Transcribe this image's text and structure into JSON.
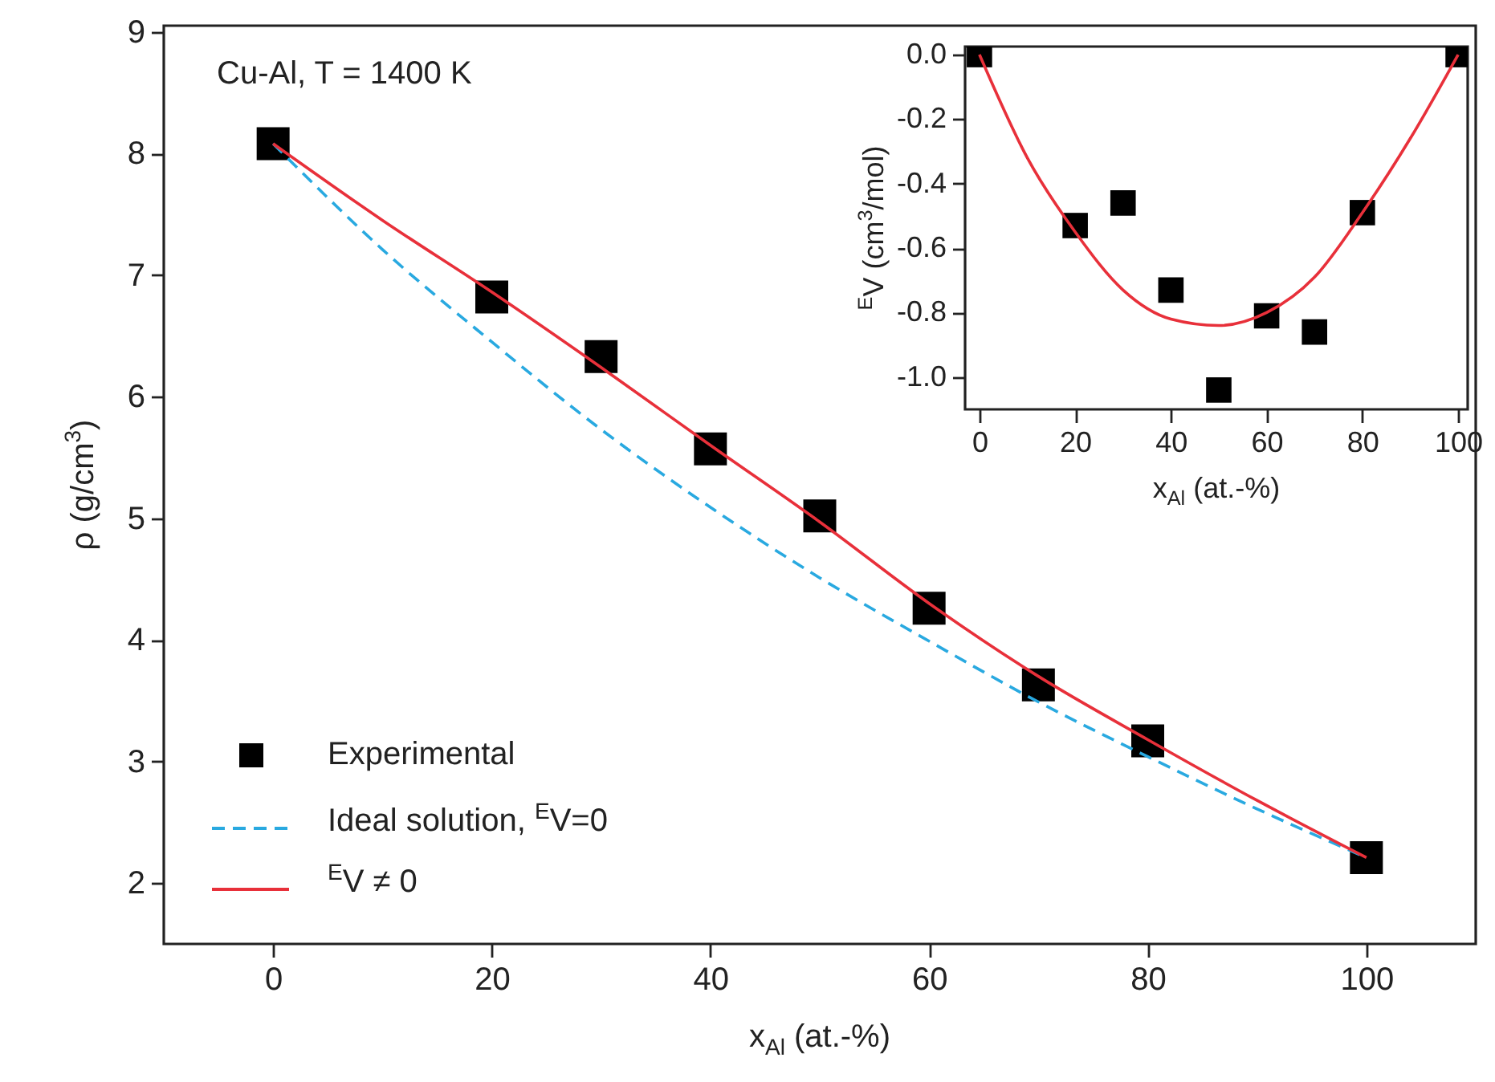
{
  "chart_data": [
    {
      "type": "scatter",
      "annotations": [
        "Cu-Al, T = 1400 K"
      ],
      "xlabel": "x$_{Al}$ (at.-%)",
      "ylabel": "ρ (g/cm$^{3}$)",
      "xlim": [
        -10,
        110
      ],
      "xticks": [
        0,
        20,
        40,
        60,
        80,
        100
      ],
      "ylim": [
        1.5,
        9.05
      ],
      "yticks": [
        2,
        3,
        4,
        5,
        6,
        7,
        8,
        9
      ],
      "legend": "bottom left",
      "series": [
        {
          "name": "Experimental",
          "marker": "square",
          "color": "#000000",
          "x": [
            0,
            20,
            30,
            40,
            50,
            60,
            70,
            80,
            100
          ],
          "values": [
            8.08,
            6.82,
            6.33,
            5.57,
            5.02,
            4.26,
            3.63,
            3.17,
            2.21
          ]
        },
        {
          "name": "Ideal solution, $^{E}$V=0",
          "type": "line",
          "line_style": "dashed",
          "color": "#29a9e0",
          "x": [
            0,
            10,
            20,
            30,
            40,
            50,
            60,
            70,
            80,
            90,
            100
          ],
          "values": [
            8.08,
            7.21,
            6.45,
            5.73,
            5.09,
            4.51,
            3.99,
            3.49,
            3.04,
            2.61,
            2.21
          ]
        },
        {
          "name": "$^{E}$V ≠ 0",
          "type": "line",
          "line_style": "solid",
          "color": "#e8303a",
          "x": [
            0,
            10,
            20,
            30,
            40,
            50,
            60,
            70,
            80,
            90,
            100
          ],
          "values": [
            8.08,
            7.45,
            6.86,
            6.24,
            5.6,
            4.97,
            4.3,
            3.7,
            3.18,
            2.68,
            2.21
          ]
        }
      ]
    },
    {
      "type": "scatter",
      "xlabel": "x$_{Al}$ (at.-%)",
      "ylabel": "$^{E}$V (cm$^{3}$/mol)",
      "xlim": [
        -3,
        102
      ],
      "xticks": [
        0,
        20,
        40,
        60,
        80,
        100
      ],
      "ylim": [
        -1.1,
        0.025
      ],
      "yticks": [
        {
          "value": 0,
          "label": "0.0"
        },
        {
          "value": -0.2,
          "label": "-0.2"
        },
        {
          "value": -0.4,
          "label": "-0.4"
        },
        {
          "value": -0.6,
          "label": "-0.6"
        },
        {
          "value": -0.8,
          "label": "-0.8"
        },
        {
          "value": -1,
          "label": "-1.0"
        }
      ],
      "series": [
        {
          "marker": "square",
          "color": "#000000",
          "x": [
            0,
            20,
            30,
            40,
            50,
            60,
            70,
            80,
            100
          ],
          "values": [
            0,
            -0.53,
            -0.46,
            -0.73,
            -1.04,
            -0.81,
            -0.86,
            -0.49,
            0
          ]
        },
        {
          "type": "line",
          "line_style": "solid",
          "color": "#e8303a",
          "x": [
            0,
            10,
            20,
            30,
            40,
            50,
            60,
            70,
            80,
            90,
            100
          ],
          "values": [
            0,
            -0.32,
            -0.55,
            -0.73,
            -0.82,
            -0.84,
            -0.8,
            -0.69,
            -0.49,
            -0.26,
            0
          ]
        }
      ]
    }
  ]
}
